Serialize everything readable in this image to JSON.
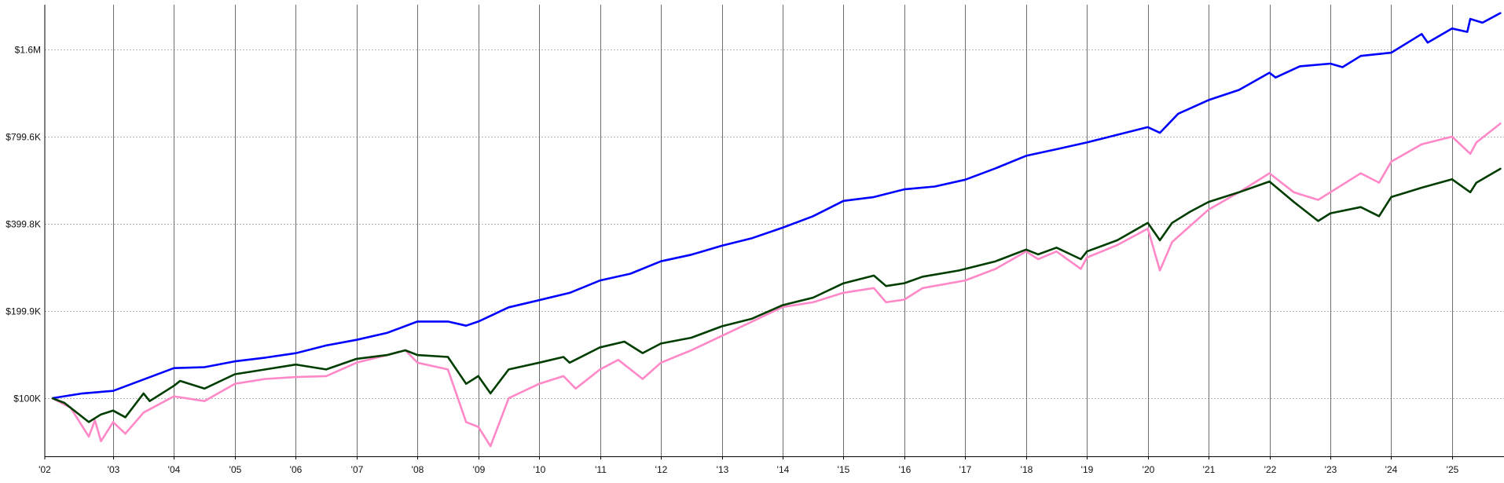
{
  "chart_data": {
    "type": "line",
    "title": "",
    "xlabel": "",
    "ylabel": "",
    "y_scale": "log",
    "ylim": [
      63000,
      2260000
    ],
    "xlim": [
      2001.85,
      2025.85
    ],
    "grid": {
      "horizontal": "dotted",
      "vertical_year_lines": true
    },
    "y_ticks": [
      {
        "value": 100000,
        "label": "$100K"
      },
      {
        "value": 199900,
        "label": "$199.9K"
      },
      {
        "value": 399800,
        "label": "$399.8K"
      },
      {
        "value": 799600,
        "label": "$799.6K"
      },
      {
        "value": 1600000,
        "label": "$1.6M"
      }
    ],
    "x_ticks": [
      {
        "value": 2002,
        "label": "'02"
      },
      {
        "value": 2003,
        "label": "'03"
      },
      {
        "value": 2004,
        "label": "'04"
      },
      {
        "value": 2005,
        "label": "'05"
      },
      {
        "value": 2006,
        "label": "'06"
      },
      {
        "value": 2007,
        "label": "'07"
      },
      {
        "value": 2008,
        "label": "'08"
      },
      {
        "value": 2009,
        "label": "'09"
      },
      {
        "value": 2010,
        "label": "'10"
      },
      {
        "value": 2011,
        "label": "'11"
      },
      {
        "value": 2012,
        "label": "'12"
      },
      {
        "value": 2013,
        "label": "'13"
      },
      {
        "value": 2014,
        "label": "'14"
      },
      {
        "value": 2015,
        "label": "'15"
      },
      {
        "value": 2016,
        "label": "'16"
      },
      {
        "value": 2017,
        "label": "'17"
      },
      {
        "value": 2018,
        "label": "'18"
      },
      {
        "value": 2019,
        "label": "'19"
      },
      {
        "value": 2020,
        "label": "'20"
      },
      {
        "value": 2021,
        "label": "'21"
      },
      {
        "value": 2022,
        "label": "'22"
      },
      {
        "value": 2023,
        "label": "'23"
      },
      {
        "value": 2024,
        "label": "'24"
      },
      {
        "value": 2025,
        "label": "'25"
      }
    ],
    "series": [
      {
        "color": "#0000ff",
        "x": [
          2002.0,
          2002.5,
          2003.0,
          2003.5,
          2004.0,
          2004.5,
          2005.0,
          2005.5,
          2006.0,
          2006.5,
          2007.0,
          2007.5,
          2008.0,
          2008.5,
          2008.8,
          2009.0,
          2009.5,
          2010.0,
          2010.5,
          2011.0,
          2011.5,
          2012.0,
          2012.5,
          2013.0,
          2013.5,
          2014.0,
          2014.5,
          2015.0,
          2015.5,
          2016.0,
          2016.5,
          2017.0,
          2017.5,
          2018.0,
          2018.5,
          2019.0,
          2019.5,
          2020.0,
          2020.2,
          2020.5,
          2021.0,
          2021.5,
          2022.0,
          2022.1,
          2022.5,
          2023.0,
          2023.2,
          2023.5,
          2024.0,
          2024.5,
          2024.6,
          2025.0,
          2025.25,
          2025.3,
          2025.5,
          2025.8
        ],
        "y": [
          100000,
          103900,
          106000,
          116000,
          127000,
          128000,
          134000,
          138000,
          143000,
          152000,
          159000,
          168000,
          184000,
          184000,
          178000,
          184000,
          206000,
          218000,
          231000,
          255000,
          269000,
          297000,
          313000,
          336000,
          357000,
          388000,
          425000,
          480000,
          495000,
          526000,
          538000,
          568000,
          622000,
          687000,
          724000,
          764000,
          812000,
          863000,
          825000,
          960000,
          1070000,
          1160000,
          1330000,
          1280000,
          1400000,
          1430000,
          1390000,
          1520000,
          1560000,
          1810000,
          1690000,
          1890000,
          1840000,
          2040000,
          1980000,
          2140000
        ]
      },
      {
        "color": "#ff88c8",
        "x": [
          2002.0,
          2002.3,
          2002.6,
          2002.7,
          2002.8,
          2003.0,
          2003.2,
          2003.5,
          2004.0,
          2004.5,
          2005.0,
          2005.5,
          2006.0,
          2006.5,
          2007.0,
          2007.5,
          2007.8,
          2008.0,
          2008.5,
          2008.8,
          2009.0,
          2009.2,
          2009.5,
          2010.0,
          2010.4,
          2010.6,
          2011.0,
          2011.3,
          2011.7,
          2012.0,
          2012.5,
          2013.0,
          2013.5,
          2014.0,
          2014.5,
          2015.0,
          2015.5,
          2015.7,
          2016.0,
          2016.3,
          2017.0,
          2017.5,
          2018.0,
          2018.2,
          2018.5,
          2018.9,
          2019.0,
          2019.5,
          2020.0,
          2020.2,
          2020.4,
          2020.7,
          2021.0,
          2021.5,
          2022.0,
          2022.4,
          2022.8,
          2023.0,
          2023.5,
          2023.8,
          2024.0,
          2024.5,
          2025.0,
          2025.3,
          2025.4,
          2025.8
        ],
        "y": [
          100000,
          92700,
          73700,
          83900,
          71000,
          82700,
          75400,
          89200,
          101500,
          97700,
          112100,
          116500,
          118300,
          119200,
          132600,
          140900,
          146400,
          132600,
          125700,
          82700,
          79600,
          68300,
          100000,
          112100,
          119200,
          107900,
          125700,
          135600,
          116500,
          132600,
          146400,
          164100,
          184000,
          206300,
          214300,
          231200,
          240000,
          214300,
          219000,
          240000,
          255000,
          279500,
          321000,
          302000,
          321000,
          279500,
          306000,
          338000,
          385000,
          276000,
          346000,
          394000,
          448000,
          514000,
          598000,
          514000,
          484000,
          514000,
          598000,
          555000,
          656000,
          753000,
          800000,
          698000,
          764000,
          890000
        ]
      },
      {
        "color": "#003d00",
        "x": [
          2002.0,
          2002.2,
          2002.6,
          2002.8,
          2003.0,
          2003.2,
          2003.5,
          2003.6,
          2004.0,
          2004.1,
          2004.5,
          2005.0,
          2005.5,
          2006.0,
          2006.5,
          2007.0,
          2007.5,
          2007.8,
          2008.0,
          2008.5,
          2008.8,
          2009.0,
          2009.2,
          2009.5,
          2010.0,
          2010.4,
          2010.5,
          2011.0,
          2011.4,
          2011.7,
          2012.0,
          2012.5,
          2013.0,
          2013.5,
          2014.0,
          2014.5,
          2015.0,
          2015.5,
          2015.7,
          2016.0,
          2016.3,
          2016.9,
          2017.0,
          2017.5,
          2018.0,
          2018.2,
          2018.5,
          2018.9,
          2019.0,
          2019.5,
          2020.0,
          2020.2,
          2020.4,
          2020.7,
          2021.0,
          2021.5,
          2022.0,
          2022.4,
          2022.8,
          2023.0,
          2023.5,
          2023.8,
          2024.0,
          2024.5,
          2025.0,
          2025.3,
          2025.4,
          2025.8
        ],
        "y": [
          100000,
          96300,
          82700,
          87900,
          90600,
          85900,
          103900,
          97700,
          110400,
          114700,
          107900,
          121000,
          125700,
          130600,
          125700,
          136700,
          140900,
          146400,
          140900,
          138800,
          112100,
          119200,
          103900,
          125700,
          132600,
          138800,
          132600,
          149800,
          156800,
          143100,
          154400,
          161700,
          177100,
          188200,
          209500,
          222400,
          249300,
          265000,
          243900,
          249500,
          262700,
          276000,
          279500,
          297000,
          326000,
          313800,
          331000,
          302000,
          321000,
          351000,
          403000,
          351000,
          403000,
          441000,
          476000,
          514000,
          560000,
          476000,
          409000,
          435000,
          457000,
          425000,
          495000,
          533000,
          570000,
          514000,
          555000,
          621000
        ]
      }
    ]
  }
}
